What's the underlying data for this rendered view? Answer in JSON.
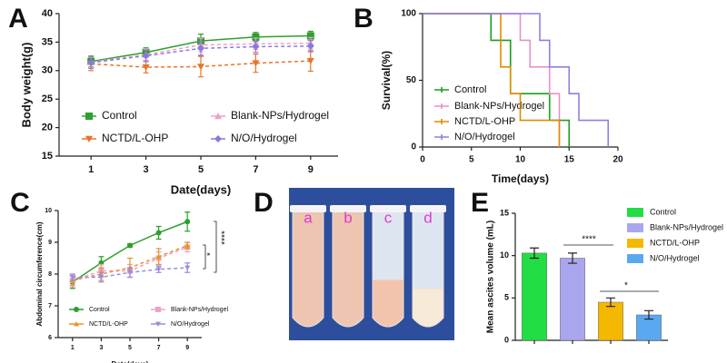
{
  "chart_data": [
    {
      "panel": "A",
      "type": "line",
      "x": [
        1,
        3,
        5,
        7,
        9
      ],
      "xlim": [
        0,
        10
      ],
      "xticks": [
        1,
        3,
        5,
        7,
        9
      ],
      "ylim": [
        15,
        40
      ],
      "yticks": [
        15,
        20,
        25,
        30,
        35,
        40
      ],
      "xlabel": "Date(days)",
      "ylabel": "Body weight(g)",
      "series": [
        {
          "name": "Control",
          "color": "#2ca02c",
          "marker": "square",
          "values": [
            31.6,
            33.2,
            35.2,
            35.9,
            36.1
          ],
          "errors": [
            1.0,
            0.8,
            1.2,
            0.8,
            0.8
          ]
        },
        {
          "name": "NCTD/L-OHP",
          "color": "#e8742a",
          "marker": "triangle-down",
          "values": [
            31.2,
            30.6,
            30.7,
            31.3,
            31.7
          ],
          "errors": [
            1.2,
            1.0,
            1.8,
            1.6,
            1.8
          ]
        },
        {
          "name": "Blank-NPs/Hydrogel",
          "color": "#f0a0c8",
          "marker": "triangle-up",
          "values": [
            31.5,
            32.8,
            34.5,
            34.7,
            34.8
          ],
          "errors": [
            1.0,
            1.0,
            1.2,
            1.0,
            1.0
          ]
        },
        {
          "name": "N/O/Hydrogel",
          "color": "#8a78e0",
          "marker": "diamond",
          "values": [
            31.4,
            32.6,
            33.9,
            34.2,
            34.3
          ],
          "errors": [
            1.0,
            1.0,
            1.2,
            1.0,
            1.0
          ]
        }
      ]
    },
    {
      "panel": "B",
      "type": "step",
      "xlim": [
        0,
        20
      ],
      "xticks": [
        0,
        5,
        10,
        15,
        20
      ],
      "ylim": [
        0,
        100
      ],
      "yticks": [
        0,
        50,
        100
      ],
      "xlabel": "Time(days)",
      "ylabel": "Survival(%)",
      "series": [
        {
          "name": "Control",
          "color": "#1aa01a",
          "x": [
            0,
            7,
            9,
            13,
            15
          ],
          "values": [
            100,
            80,
            40,
            20,
            0
          ]
        },
        {
          "name": "Blank-NPs/Hydrogel",
          "color": "#e890c8",
          "x": [
            0,
            10,
            11,
            13,
            14
          ],
          "values": [
            100,
            80,
            60,
            40,
            0
          ]
        },
        {
          "name": "NCTD/L-OHP",
          "color": "#e08a00",
          "x": [
            0,
            8,
            9,
            10,
            14
          ],
          "values": [
            100,
            60,
            40,
            20,
            0
          ]
        },
        {
          "name": "N/O/Hydrogel",
          "color": "#8f7fe0",
          "x": [
            0,
            12,
            13,
            15,
            16,
            19
          ],
          "values": [
            100,
            80,
            60,
            40,
            20,
            0
          ]
        }
      ]
    },
    {
      "panel": "C",
      "type": "line",
      "x": [
        1,
        3,
        5,
        7,
        9
      ],
      "xlim": [
        0,
        10
      ],
      "xticks": [
        1,
        3,
        5,
        7,
        9
      ],
      "ylim": [
        6,
        10
      ],
      "yticks": [
        6,
        7,
        8,
        9,
        10
      ],
      "xlabel": "Date(days)",
      "ylabel": "Abdominal circumference(cm)",
      "series": [
        {
          "name": "Control",
          "color": "#2ca02c",
          "marker": "circle",
          "values": [
            7.75,
            8.35,
            8.9,
            9.3,
            9.65
          ],
          "errors": [
            0.2,
            0.2,
            0.05,
            0.2,
            0.3
          ]
        },
        {
          "name": "Blank-NPs/Hydrogel",
          "color": "#f0a0c8",
          "marker": "square",
          "values": [
            7.8,
            8.1,
            8.1,
            8.5,
            8.85
          ],
          "errors": [
            0.2,
            0.2,
            0.2,
            0.2,
            0.15
          ]
        },
        {
          "name": "NCTD/L-OHP",
          "color": "#e8942a",
          "marker": "triangle-up",
          "values": [
            7.8,
            8.0,
            8.2,
            8.55,
            8.9
          ],
          "errors": [
            0.15,
            0.2,
            0.3,
            0.25,
            0.1
          ]
        },
        {
          "name": "N/O/Hydrogel",
          "color": "#9a8ce0",
          "marker": "triangle-down",
          "values": [
            7.9,
            7.9,
            8.05,
            8.15,
            8.2
          ],
          "errors": [
            0.1,
            0.15,
            0.15,
            0.1,
            0.15
          ]
        }
      ],
      "annotations": [
        "****",
        "*"
      ]
    },
    {
      "panel": "E",
      "type": "bar",
      "ylim": [
        0,
        15
      ],
      "yticks": [
        0,
        5,
        10,
        15
      ],
      "ylabel": "Mean ascites volume (mL)",
      "series": [
        {
          "name": "Control",
          "color": "#22dd44",
          "values": [
            10.3
          ],
          "errors": [
            0.6
          ]
        },
        {
          "name": "Blank-NPs/Hydrogel",
          "color": "#aaa6ee",
          "values": [
            9.7
          ],
          "errors": [
            0.6
          ]
        },
        {
          "name": "NCTD/L-OHP",
          "color": "#f5b800",
          "values": [
            4.5
          ],
          "errors": [
            0.5
          ]
        },
        {
          "name": "N/O/Hydrogel",
          "color": "#5aa9f0",
          "values": [
            3.0
          ],
          "errors": [
            0.5
          ]
        }
      ],
      "annotations": [
        "****",
        "*"
      ]
    }
  ],
  "photo": {
    "panel": "D",
    "labels": [
      "a",
      "b",
      "c",
      "d"
    ]
  }
}
